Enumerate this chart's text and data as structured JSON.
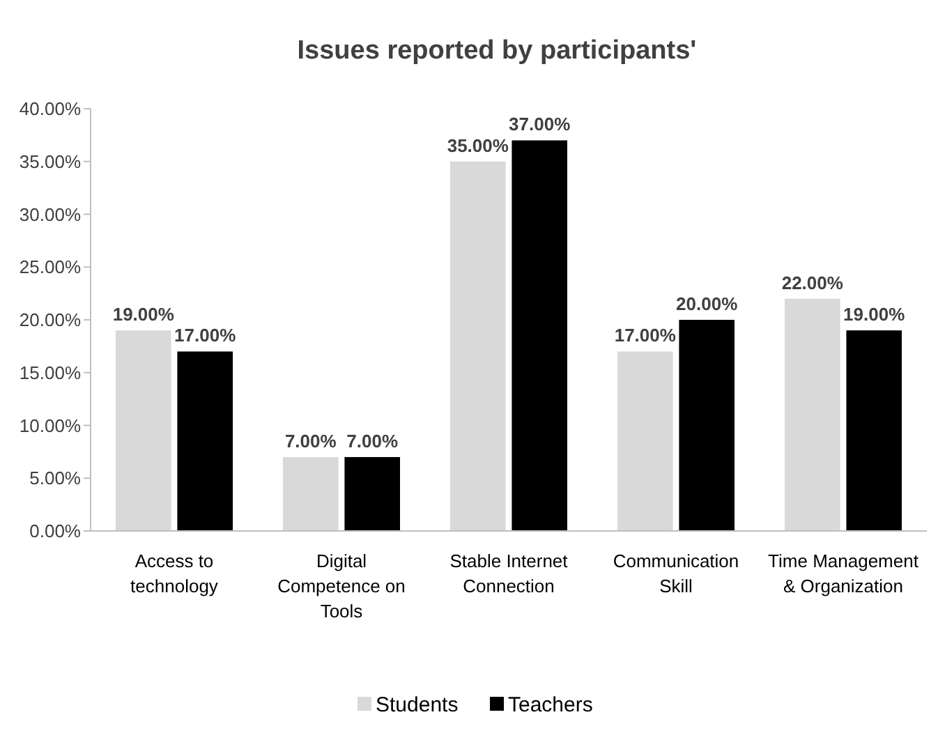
{
  "chart_data": {
    "type": "bar",
    "title": "Issues reported by participants'",
    "categories": [
      "Access to technology",
      "Digital Competence on Tools",
      "Stable Internet Connection",
      "Communication Skill",
      "Time Management & Organization"
    ],
    "series": [
      {
        "name": "Students",
        "color": "#d9d9d9",
        "values": [
          19,
          7,
          35,
          17,
          22
        ],
        "value_labels": [
          "19.00%",
          "7.00%",
          "35.00%",
          "17.00%",
          "22.00%"
        ]
      },
      {
        "name": "Teachers",
        "color": "#000000",
        "values": [
          17,
          7,
          37,
          20,
          19
        ],
        "value_labels": [
          "17.00%",
          "7.00%",
          "37.00%",
          "20.00%",
          "19.00%"
        ]
      }
    ],
    "ylim": [
      0,
      40
    ],
    "yticks": [
      {
        "value": 0,
        "label": "0.00%"
      },
      {
        "value": 5,
        "label": "5.00%"
      },
      {
        "value": 10,
        "label": "10.00%"
      },
      {
        "value": 15,
        "label": "15.00%"
      },
      {
        "value": 20,
        "label": "20.00%"
      },
      {
        "value": 25,
        "label": "25.00%"
      },
      {
        "value": 30,
        "label": "30.00%"
      },
      {
        "value": 35,
        "label": "35.00%"
      },
      {
        "value": 40,
        "label": "40.00%"
      }
    ],
    "grid": false,
    "legend": "bottom"
  }
}
